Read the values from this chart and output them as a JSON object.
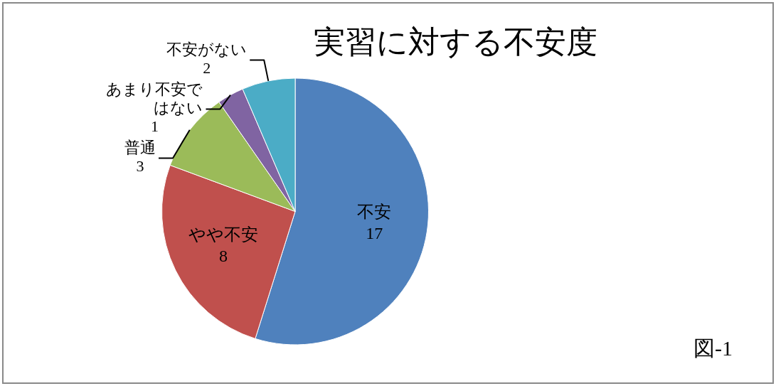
{
  "chart_data": {
    "type": "pie",
    "title": "実習に対する不安度",
    "categories": [
      "不安",
      "やや不安",
      "普通",
      "あまり不安ではない",
      "不安がない"
    ],
    "values": [
      17,
      8,
      3,
      1,
      2
    ],
    "colors": [
      "#4f81bd",
      "#c0504d",
      "#9bbb59",
      "#8064a2",
      "#4bacc6"
    ],
    "data_labels": true,
    "annotations": [
      "図-1"
    ]
  }
}
